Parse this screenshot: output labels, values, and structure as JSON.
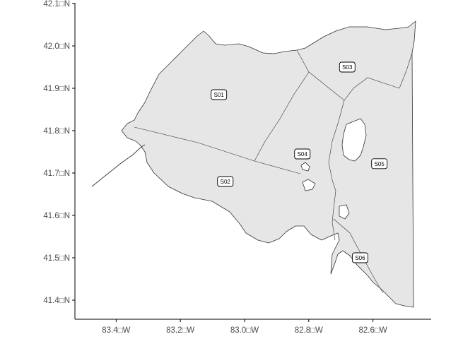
{
  "map": {
    "x_axis": {
      "ticks": [
        {
          "value": -83.4,
          "label": "83.4□W"
        },
        {
          "value": -83.2,
          "label": "83.2□W"
        },
        {
          "value": -83.0,
          "label": "83.0□W"
        },
        {
          "value": -82.8,
          "label": "82.8□W"
        },
        {
          "value": -82.6,
          "label": "82.6□W"
        }
      ]
    },
    "y_axis": {
      "ticks": [
        {
          "value": 42.1,
          "label": "42.1□N"
        },
        {
          "value": 42.0,
          "label": "42.0□N"
        },
        {
          "value": 41.9,
          "label": "41.9□N"
        },
        {
          "value": 41.8,
          "label": "41.8□N"
        },
        {
          "value": 41.7,
          "label": "41.7□N"
        },
        {
          "value": 41.6,
          "label": "41.6□N"
        },
        {
          "value": 41.5,
          "label": "41.5□N"
        },
        {
          "value": 41.4,
          "label": "41.4□N"
        }
      ]
    },
    "zones": [
      {
        "id": "S01",
        "label": "S01",
        "lon": -83.08,
        "lat": 41.885
      },
      {
        "id": "S02",
        "label": "S02",
        "lon": -83.06,
        "lat": 41.68
      },
      {
        "id": "S03",
        "label": "S03",
        "lon": -82.68,
        "lat": 41.95
      },
      {
        "id": "S04",
        "label": "S04",
        "lon": -82.82,
        "lat": 41.745
      },
      {
        "id": "S05",
        "label": "S05",
        "lon": -82.58,
        "lat": 41.722
      },
      {
        "id": "S06",
        "label": "S06",
        "lon": -82.64,
        "lat": 41.5
      }
    ],
    "colors": {
      "land_fill": "#e6e6e6",
      "outline": "#333333",
      "background": "#ffffff"
    }
  }
}
